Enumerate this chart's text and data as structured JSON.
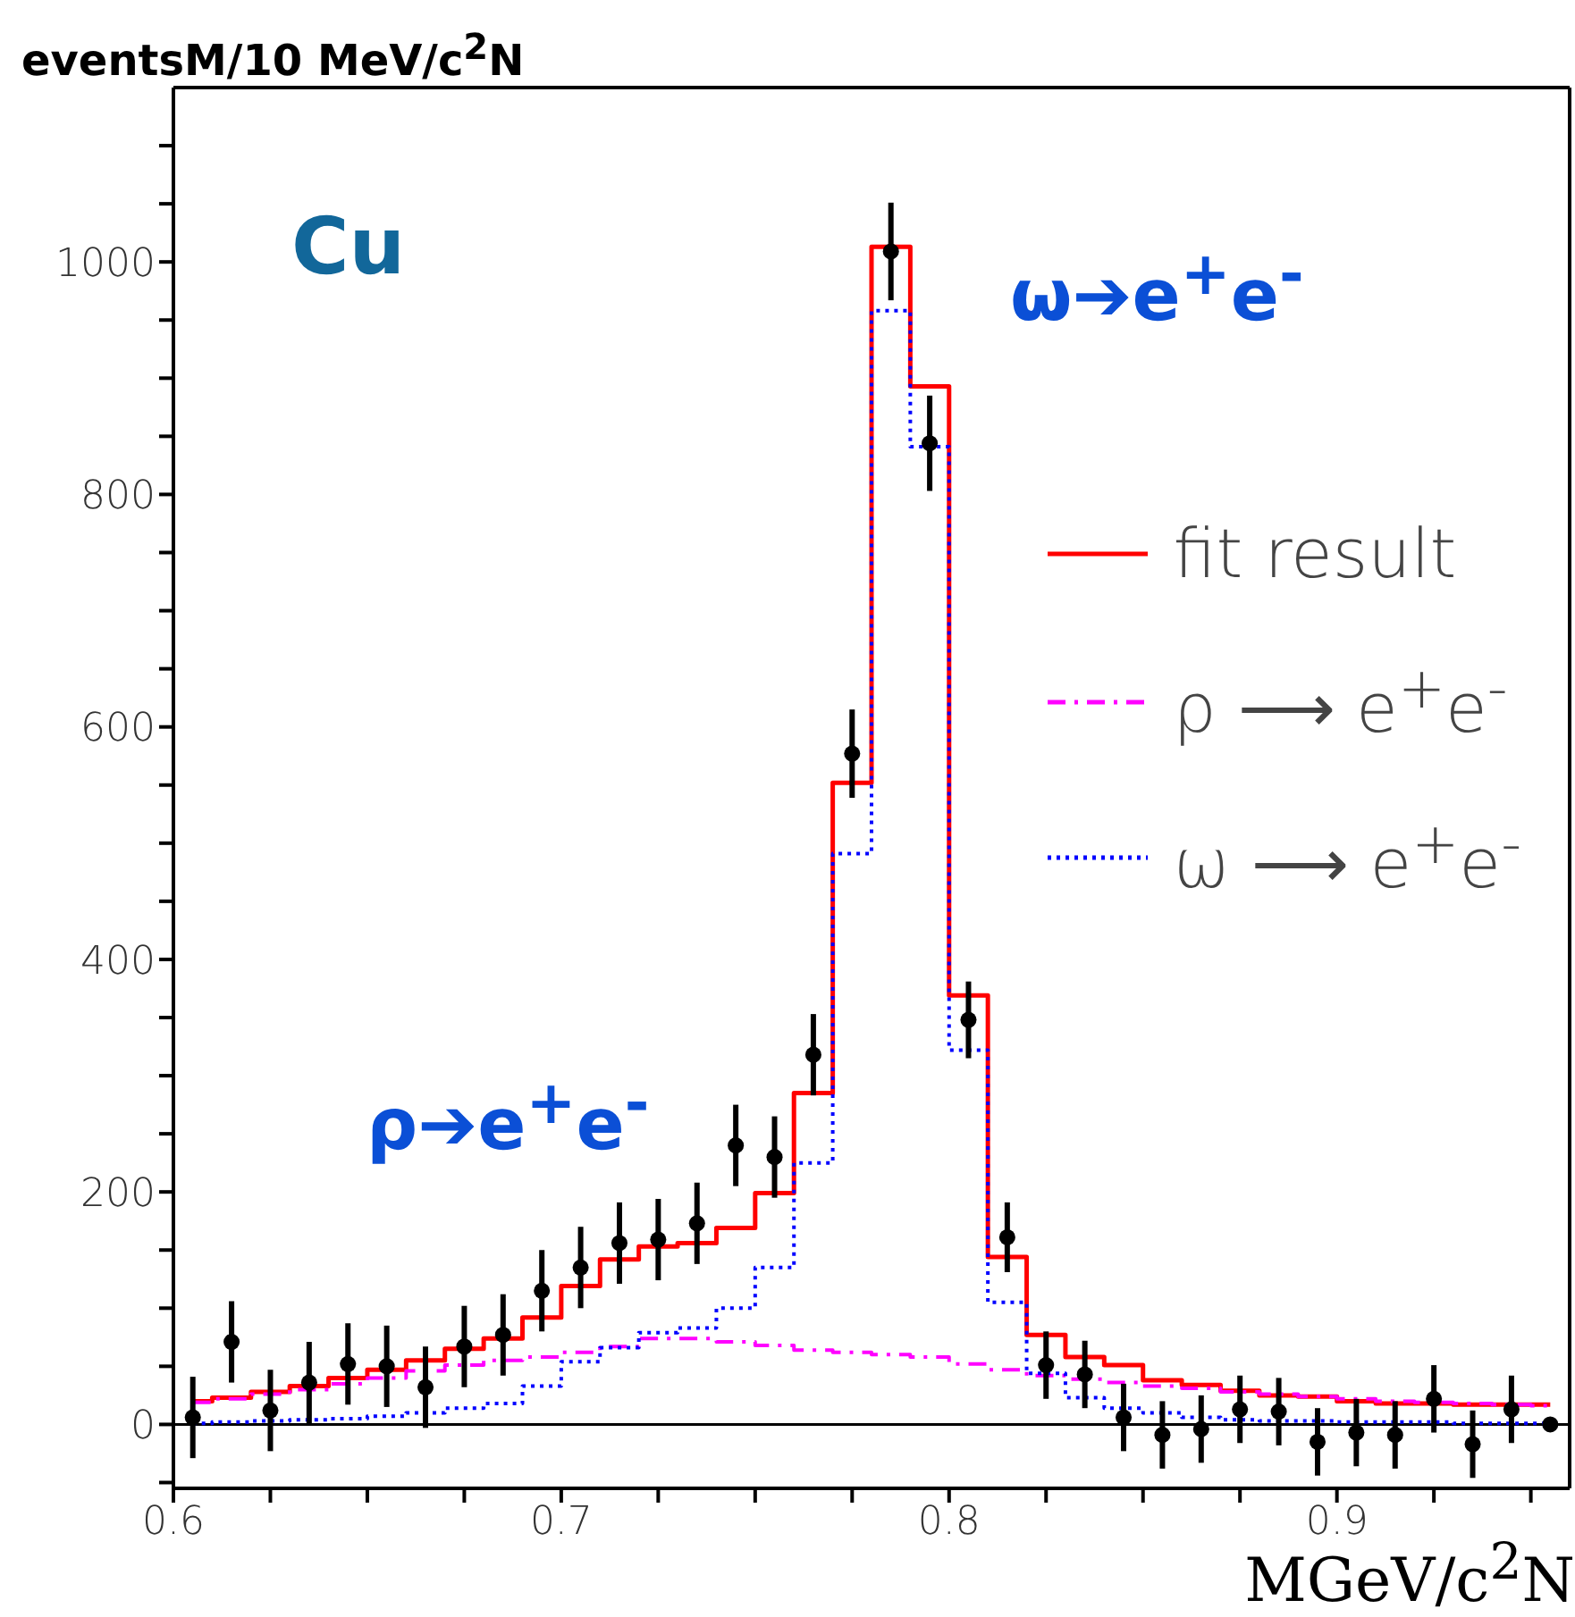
{
  "chart_data": {
    "type": "scatter",
    "xlabel": "MGeV/c$^{2}$N",
    "ylabel": "eventsM/10 MeV/c$^{2}$N",
    "x": [
      0.605,
      0.615,
      0.625,
      0.635,
      0.645,
      0.655,
      0.665,
      0.675,
      0.685,
      0.695,
      0.705,
      0.715,
      0.725,
      0.735,
      0.745,
      0.755,
      0.765,
      0.775,
      0.785,
      0.795,
      0.805,
      0.815,
      0.825,
      0.835,
      0.845,
      0.855,
      0.865,
      0.875,
      0.885,
      0.895,
      0.905,
      0.915,
      0.925,
      0.935,
      0.945,
      0.955
    ],
    "series": [
      {
        "type": "step",
        "name": "fit result",
        "color": "#ff0000",
        "line_style": "solid",
        "values": [
          20,
          23,
          28,
          33,
          40,
          47,
          55,
          65,
          74,
          92,
          119,
          142,
          153,
          156,
          169,
          199,
          285,
          552,
          1013,
          893,
          369,
          144,
          77,
          58,
          51,
          38,
          34,
          29,
          25,
          24,
          20,
          18,
          18,
          17,
          17,
          17
        ]
      },
      {
        "type": "step",
        "name": "ρ ⟶ e$^{+}$e$^{-}$",
        "color": "#ff00ff",
        "line_style": "dashed",
        "values": [
          19,
          22,
          26,
          30,
          35,
          40,
          46,
          51,
          55,
          58,
          62,
          67,
          74,
          74,
          71,
          68,
          64,
          62,
          60,
          58,
          52,
          47,
          42,
          39,
          36,
          33,
          31,
          28,
          26,
          24,
          22,
          20,
          19,
          18,
          17,
          16
        ]
      },
      {
        "type": "step",
        "name": "ω ⟶ e$^{+}$e$^{-}$",
        "color": "#0000ff",
        "line_style": "dotted",
        "values": [
          1,
          2,
          3,
          4,
          5,
          7,
          10,
          14,
          18,
          33,
          54,
          66,
          79,
          83,
          100,
          135,
          225,
          491,
          958,
          841,
          322,
          105,
          44,
          23,
          14,
          10,
          6,
          4,
          3,
          3,
          2,
          2,
          2,
          1,
          1,
          1
        ]
      },
      {
        "color": "#000000",
        "marker": "circle",
        "values": [
          6,
          71,
          12,
          36,
          52,
          50,
          32,
          67,
          77,
          115,
          135,
          156,
          159,
          173,
          240,
          230,
          318,
          577,
          1009,
          844,
          348,
          161,
          51,
          43,
          6,
          -9,
          -4,
          13,
          11,
          -15,
          -7,
          -9,
          22,
          -17,
          13,
          0
        ],
        "errors": [
          35,
          35,
          35,
          35,
          35,
          35,
          35,
          35,
          35,
          35,
          35,
          35,
          35,
          35,
          35,
          35,
          35,
          38,
          42,
          41,
          33,
          30,
          29,
          29,
          29,
          29,
          29,
          29,
          29,
          29,
          29,
          29,
          29,
          29,
          29,
          null
        ]
      }
    ],
    "annotations": [
      "Cu",
      "ω➔e$^{+}$e$^{-}$",
      "ρ➔e$^{+}$e$^{-}$"
    ],
    "xlim": [
      0.6,
      0.96
    ],
    "xticks": [
      0.6,
      {
        "value": 0.625,
        "label": null
      },
      {
        "value": 0.65,
        "label": null
      },
      {
        "value": 0.675,
        "label": null
      },
      0.7,
      {
        "value": 0.725,
        "label": null
      },
      {
        "value": 0.75,
        "label": null
      },
      {
        "value": 0.775,
        "label": null
      },
      0.8,
      {
        "value": 0.825,
        "label": null
      },
      {
        "value": 0.85,
        "label": null
      },
      {
        "value": 0.875,
        "label": null
      },
      0.9,
      {
        "value": 0.925,
        "label": null
      },
      {
        "value": 0.95,
        "label": null
      }
    ],
    "ylim": [
      -55,
      1150
    ],
    "yticks": [
      {
        "value": -50,
        "label": null
      },
      0,
      {
        "value": 50,
        "label": null
      },
      {
        "value": 100,
        "label": null
      },
      {
        "value": 150,
        "label": null
      },
      200,
      {
        "value": 250,
        "label": null
      },
      {
        "value": 300,
        "label": null
      },
      {
        "value": 350,
        "label": null
      },
      400,
      {
        "value": 450,
        "label": null
      },
      {
        "value": 500,
        "label": null
      },
      {
        "value": 550,
        "label": null
      },
      600,
      {
        "value": 650,
        "label": null
      },
      {
        "value": 700,
        "label": null
      },
      {
        "value": 750,
        "label": null
      },
      800,
      {
        "value": 850,
        "label": null
      },
      {
        "value": 900,
        "label": null
      },
      {
        "value": 950,
        "label": null
      },
      1000,
      {
        "value": 1050,
        "label": null
      },
      {
        "value": 1100,
        "label": null
      }
    ],
    "ref_lines": [
      {
        "axis": "y",
        "value": 0,
        "color": "#000000"
      }
    ],
    "legend": "right",
    "grid": false
  }
}
